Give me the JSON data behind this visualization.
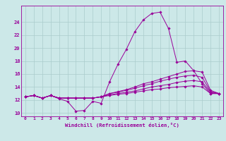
{
  "background_color": "#cce8e8",
  "plot_bg_color": "#cce8e8",
  "grid_color": "#aacccc",
  "line_color": "#990099",
  "marker_color": "#990099",
  "xlabel": "Windchill (Refroidissement éolien,°C)",
  "xlim": [
    -0.5,
    23.5
  ],
  "ylim": [
    9.5,
    26.5
  ],
  "yticks": [
    10,
    12,
    14,
    16,
    18,
    20,
    22,
    24
  ],
  "xticks": [
    0,
    1,
    2,
    3,
    4,
    5,
    6,
    7,
    8,
    9,
    10,
    11,
    12,
    13,
    14,
    15,
    16,
    17,
    18,
    19,
    20,
    21,
    22,
    23
  ],
  "series": [
    [
      12.5,
      12.7,
      12.3,
      12.7,
      12.2,
      11.8,
      10.3,
      10.4,
      11.8,
      11.5,
      14.8,
      17.5,
      19.8,
      22.5,
      24.3,
      25.3,
      25.5,
      23.0,
      17.8,
      18.0,
      16.5,
      14.5,
      13.0,
      13.0
    ],
    [
      12.5,
      12.7,
      12.3,
      12.7,
      12.3,
      12.3,
      12.3,
      12.3,
      12.3,
      12.5,
      13.0,
      13.3,
      13.6,
      14.0,
      14.5,
      14.8,
      15.2,
      15.6,
      16.0,
      16.4,
      16.5,
      16.3,
      13.5,
      13.0
    ],
    [
      12.5,
      12.7,
      12.3,
      12.7,
      12.3,
      12.3,
      12.3,
      12.3,
      12.3,
      12.5,
      13.0,
      13.2,
      13.5,
      13.8,
      14.2,
      14.5,
      14.9,
      15.2,
      15.5,
      15.7,
      15.8,
      15.5,
      13.3,
      13.0
    ],
    [
      12.5,
      12.7,
      12.3,
      12.7,
      12.3,
      12.3,
      12.3,
      12.3,
      12.3,
      12.5,
      12.8,
      13.0,
      13.2,
      13.4,
      13.7,
      14.0,
      14.2,
      14.4,
      14.7,
      14.9,
      15.0,
      14.8,
      13.2,
      13.0
    ],
    [
      12.5,
      12.7,
      12.3,
      12.7,
      12.3,
      12.3,
      12.3,
      12.3,
      12.3,
      12.5,
      12.7,
      12.9,
      13.0,
      13.2,
      13.4,
      13.6,
      13.7,
      13.9,
      14.0,
      14.1,
      14.2,
      14.0,
      13.0,
      13.0
    ]
  ]
}
